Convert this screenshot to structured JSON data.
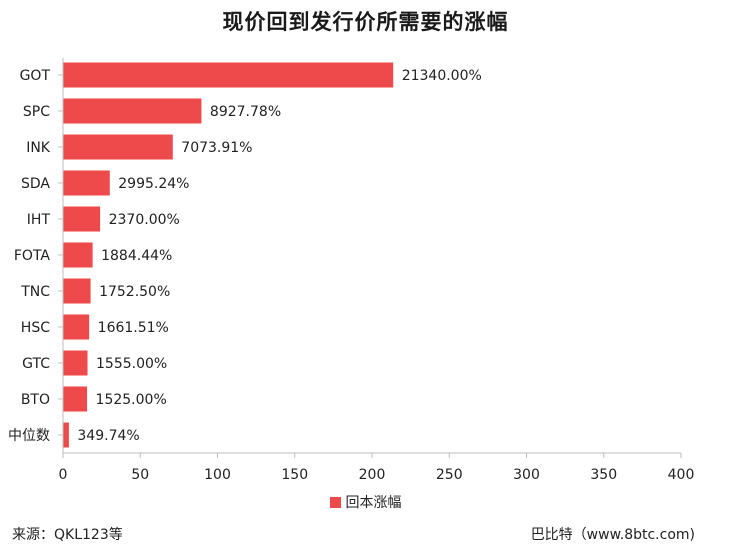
{
  "chart_data": {
    "type": "bar",
    "orientation": "horizontal",
    "title": "现价回到发行价所需要的涨幅",
    "categories": [
      "GOT",
      "SPC",
      "INK",
      "SDA",
      "IHT",
      "FOTA",
      "TNC",
      "HSC",
      "GTC",
      "BTO",
      "中位数"
    ],
    "series": [
      {
        "name": "回本涨幅",
        "values": [
          213.4,
          89.2778,
          70.7391,
          29.9524,
          23.7,
          18.8444,
          17.525,
          16.6151,
          15.55,
          15.25,
          3.4974
        ],
        "data_labels": [
          "21340.00%",
          "8927.78%",
          "7073.91%",
          "2995.24%",
          "2370.00%",
          "1884.44%",
          "1752.50%",
          "1661.51%",
          "1555.00%",
          "1525.00%",
          "349.74%"
        ]
      }
    ],
    "xlim": [
      0,
      400
    ],
    "x_ticks": [
      0,
      50,
      100,
      150,
      200,
      250,
      300,
      350,
      400
    ],
    "xlabel": "",
    "ylabel": "",
    "grid": false,
    "legend_position": "bottom",
    "bar_color": "#EF4A4B"
  },
  "footer": {
    "source": "来源：QKL123等",
    "credit": "巴比特（www.8btc.com)"
  }
}
